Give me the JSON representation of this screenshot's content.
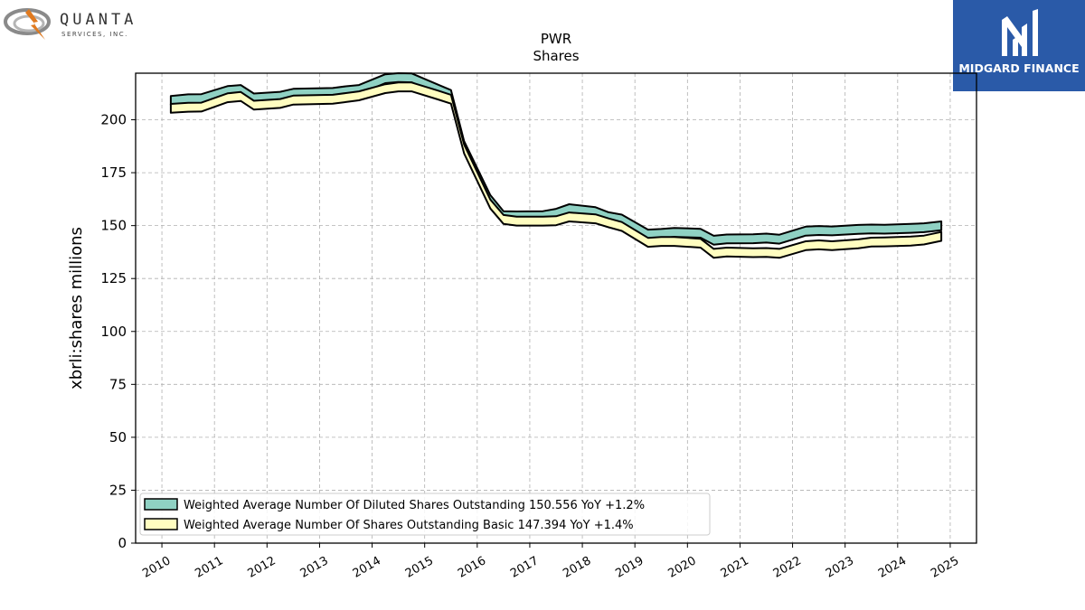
{
  "header": {
    "left_logo": {
      "wordmark": "QUANTA",
      "subtext": "SERVICES, INC.",
      "icon": "quanta-swirl-bolt-icon"
    },
    "right_logo": {
      "brand": "MIDGARD FINANCE",
      "icon": "midgard-m-icon",
      "bg_color": "#2a5aa8"
    }
  },
  "chart_data": {
    "type": "area",
    "title": "PWR",
    "subtitle": "Shares",
    "xlabel": "",
    "ylabel": "xbrli:shares millions",
    "ylim": [
      0,
      222
    ],
    "yticks": [
      0,
      25,
      50,
      75,
      100,
      125,
      150,
      175,
      200
    ],
    "xlim": [
      2009.5,
      2025.5
    ],
    "xticks": [
      2010,
      2011,
      2012,
      2013,
      2014,
      2015,
      2016,
      2017,
      2018,
      2019,
      2020,
      2021,
      2022,
      2023,
      2024,
      2025
    ],
    "grid": true,
    "legend_position": "lower-left",
    "x": [
      2010.17,
      2010.5,
      2010.75,
      2011.25,
      2011.5,
      2011.75,
      2012.25,
      2012.5,
      2013.25,
      2013.5,
      2013.75,
      2014.25,
      2014.5,
      2014.75,
      2015.25,
      2015.5,
      2015.75,
      2016.25,
      2016.5,
      2016.75,
      2017.25,
      2017.5,
      2017.75,
      2018.25,
      2018.5,
      2018.75,
      2019.25,
      2019.5,
      2019.75,
      2020.25,
      2020.5,
      2020.75,
      2021.25,
      2021.5,
      2021.75,
      2022.25,
      2022.5,
      2022.75,
      2023.25,
      2023.5,
      2023.75,
      2024.25,
      2024.5,
      2024.83
    ],
    "series": [
      {
        "name": "Weighted Average Number Of Diluted Shares Outstanding",
        "legend_value": "150.556",
        "legend_change": "YoY +1.2%",
        "color": "#8fd1c3",
        "values": [
          211.2,
          212.0,
          212.1,
          215.9,
          216.4,
          212.4,
          213.2,
          214.6,
          215.0,
          215.8,
          216.4,
          221.5,
          222.0,
          221.9,
          216.6,
          214.0,
          189.9,
          164.4,
          156.8,
          156.7,
          156.8,
          157.9,
          160.1,
          158.7,
          156.3,
          155.2,
          148.1,
          148.4,
          148.9,
          148.5,
          145.2,
          145.8,
          145.9,
          146.2,
          145.7,
          149.5,
          149.8,
          149.6,
          150.3,
          150.5,
          150.4,
          150.8,
          151.1,
          152.0
        ]
      },
      {
        "name": "Weighted Average Number Of Shares Outstanding Basic",
        "legend_value": "147.394",
        "legend_change": "YoY +1.4%",
        "color": "#fffdc0",
        "values": [
          207.5,
          208.0,
          208.1,
          212.5,
          213.1,
          209.0,
          209.8,
          211.4,
          211.8,
          212.6,
          213.4,
          216.8,
          217.6,
          217.6,
          213.8,
          211.8,
          188.3,
          162.3,
          155.0,
          154.2,
          154.2,
          154.4,
          156.2,
          155.3,
          153.4,
          151.7,
          144.2,
          144.6,
          144.6,
          143.8,
          139.0,
          139.6,
          139.3,
          139.4,
          139.0,
          142.6,
          143.0,
          142.6,
          143.5,
          144.3,
          144.4,
          144.8,
          145.3,
          147.0
        ]
      }
    ]
  }
}
